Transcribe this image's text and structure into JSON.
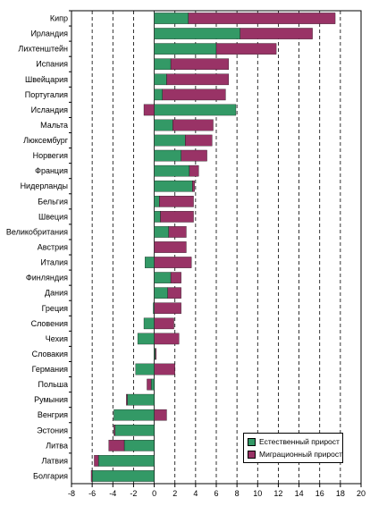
{
  "chart_data": {
    "type": "bar",
    "orientation": "horizontal",
    "stacked": true,
    "categories": [
      "Кипр",
      "Ирландия",
      "Лихтенштейн",
      "Испания",
      "Швейцария",
      "Португалия",
      "Исландия",
      "Мальта",
      "Люксембург",
      "Норвегия",
      "Франция",
      "Нидерланды",
      "Бельгия",
      "Швеция",
      "Великобритания",
      "Австрия",
      "Италия",
      "Финляндия",
      "Дания",
      "Греция",
      "Словения",
      "Чехия",
      "Словакия",
      "Германия",
      "Польша",
      "Румыния",
      "Венгрия",
      "Эстония",
      "Литва",
      "Латвия",
      "Болгария"
    ],
    "series": [
      {
        "name": "Естественный прирост",
        "color": "#339966",
        "values": [
          3.3,
          8.3,
          6.0,
          1.6,
          1.2,
          0.8,
          7.9,
          1.8,
          3.0,
          2.6,
          3.4,
          3.7,
          0.5,
          0.6,
          1.4,
          0.0,
          -0.9,
          1.6,
          1.3,
          -0.1,
          -1.0,
          -1.6,
          0.1,
          -1.8,
          -0.3,
          -2.6,
          -3.9,
          -3.8,
          -2.9,
          -5.4,
          -6.0
        ]
      },
      {
        "name": "Миграционный прирост",
        "color": "#993366",
        "values": [
          14.2,
          7.0,
          5.8,
          5.6,
          6.0,
          6.1,
          -1.0,
          3.9,
          2.6,
          2.5,
          0.9,
          0.2,
          3.3,
          3.2,
          1.7,
          3.1,
          3.6,
          1.0,
          1.3,
          2.6,
          1.9,
          2.4,
          0.1,
          2.0,
          -0.4,
          -0.1,
          1.2,
          -0.1,
          -1.5,
          -0.4,
          -0.1
        ]
      }
    ],
    "xlim": [
      -8,
      20
    ],
    "xticks": [
      -8,
      -6,
      -4,
      -2,
      0,
      2,
      4,
      6,
      8,
      10,
      12,
      14,
      16,
      18,
      20
    ],
    "grid": "vertical dashed",
    "legend": "bottom-right"
  }
}
